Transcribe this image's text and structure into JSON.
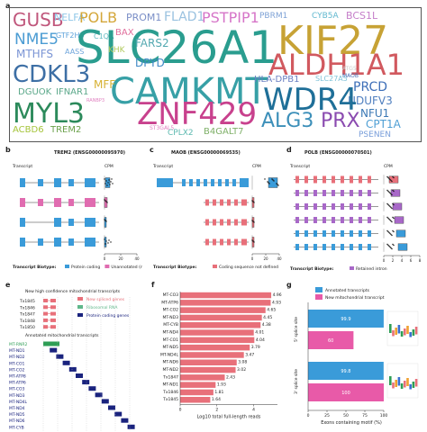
{
  "panel_letters": {
    "a": "a",
    "b": "b",
    "c": "c",
    "d": "d",
    "e": "e",
    "f": "f",
    "g": "g"
  },
  "wordcloud": {
    "words": [
      {
        "text": "GUSB",
        "color": "#c0577c"
      },
      {
        "text": "NELFA",
        "color": "#8fc7e8"
      },
      {
        "text": "POLB",
        "color": "#d4a73a"
      },
      {
        "text": "PROM1",
        "color": "#7b8fc7"
      },
      {
        "text": "FLAD1",
        "color": "#9ac2e0"
      },
      {
        "text": "PSTPIP1",
        "color": "#d675c8"
      },
      {
        "text": "PBRM1",
        "color": "#7ea2d6"
      },
      {
        "text": "CYB5A",
        "color": "#60b8cf"
      },
      {
        "text": "BCS1L",
        "color": "#c57ec9"
      },
      {
        "text": "NME5",
        "color": "#4b9cd3"
      },
      {
        "text": "GTF2H5",
        "color": "#5aa0d9"
      },
      {
        "text": "C1QA",
        "color": "#5fb8c0"
      },
      {
        "text": "BAX",
        "color": "#e06d9b"
      },
      {
        "text": "SLC26A1",
        "color": "#2a9d8f"
      },
      {
        "text": "KIF27",
        "color": "#c7a235"
      },
      {
        "text": "MTHFS",
        "color": "#7b95d5"
      },
      {
        "text": "AASS",
        "color": "#70a6dc"
      },
      {
        "text": "KHK",
        "color": "#b0c95a"
      },
      {
        "text": "FARS2",
        "color": "#52a8b0"
      },
      {
        "text": "ALDH1A1",
        "color": "#d1595f"
      },
      {
        "text": "CDKL3",
        "color": "#3d6fa5"
      },
      {
        "text": "DPYD",
        "color": "#3f89c5"
      },
      {
        "text": "CAMKMT",
        "color": "#37a0a6"
      },
      {
        "text": "ATG5",
        "color": "#c8c8c8"
      },
      {
        "text": "DGUOK",
        "color": "#5ba88a"
      },
      {
        "text": "IFNAR1",
        "color": "#5ba88a"
      },
      {
        "text": "MFF",
        "color": "#d7b233"
      },
      {
        "text": "HLA-DPB1",
        "color": "#6a7fc2"
      },
      {
        "text": "SLC27A5",
        "color": "#7fc2d8"
      },
      {
        "text": "PRCD",
        "color": "#3e6fb8"
      },
      {
        "text": "NDUFV3",
        "color": "#4f7fbf"
      },
      {
        "text": "MAOB",
        "color": "#4a6fb4"
      },
      {
        "text": "MYL3",
        "color": "#2c8a5b"
      },
      {
        "text": "ZNF429",
        "color": "#c8418d"
      },
      {
        "text": "WDR4",
        "color": "#1f6f98"
      },
      {
        "text": "NFU1",
        "color": "#3c79b5"
      },
      {
        "text": "RANBP3",
        "color": "#e080c0"
      },
      {
        "text": "ST3GAL5",
        "color": "#e080c0"
      },
      {
        "text": "ALG3",
        "color": "#3c8fb9"
      },
      {
        "text": "PRX",
        "color": "#8b4bb0"
      },
      {
        "text": "CPT1A",
        "color": "#4f9fd4"
      },
      {
        "text": "ACBD6",
        "color": "#a5c43a"
      },
      {
        "text": "TREM2",
        "color": "#6aa04a"
      },
      {
        "text": "CPLX2",
        "color": "#5db9b0"
      },
      {
        "text": "B4GALT7",
        "color": "#7fb068"
      },
      {
        "text": "PSENEN",
        "color": "#7a9fda"
      }
    ]
  },
  "panel_b": {
    "title": "TREM2 (ENSG00000095970)",
    "transcript": "Transcript",
    "cpm": "CPM",
    "axis_ticks": [
      "0",
      "20",
      "40"
    ],
    "legend_title": "Transcript Biotype:",
    "legend": [
      {
        "label": "Protein coding",
        "color": "#3a9bd9"
      },
      {
        "label": "Unannotated (new)",
        "color": "#e06cb0"
      }
    ]
  },
  "panel_c": {
    "title": "MAOB (ENSG00000069535)",
    "transcript": "Transcript",
    "cpm": "CPM",
    "axis_ticks": [
      "0",
      "20",
      "40"
    ],
    "legend_title": "Transcript Biotype:",
    "legend": [
      {
        "label": "Coding sequence not defined",
        "color": "#e8707a"
      }
    ]
  },
  "panel_d": {
    "title": "POLB (ENSG00000070501)",
    "transcript": "Transcript",
    "cpm": "CPM",
    "axis_ticks": [
      "0",
      "2",
      "4",
      "6",
      "8"
    ],
    "legend_title": "Transcript Biotype:",
    "legend": [
      {
        "label": "Retained intron",
        "color": "#a868c8"
      }
    ]
  },
  "panel_e": {
    "subtitle_new": "New high confidence mitochondrial transcripts",
    "subtitle_annot": "Annotated mitochondrial transcripts",
    "legend": [
      {
        "label": "New spliced genes",
        "color": "#e8707a"
      },
      {
        "label": "Ribosomal RNA",
        "color": "#5fb88a"
      },
      {
        "label": "Protein coding genes",
        "color": "#1a237e"
      }
    ],
    "new_rows": [
      "Tx1845",
      "Tx1846",
      "Tx1847",
      "Tx1848",
      "Tx1850"
    ],
    "annot_rows": [
      {
        "label": "MT-RNR2",
        "color": "#2e9e55"
      },
      {
        "label": "MT-ND1",
        "color": "#1a237e"
      },
      {
        "label": "MT-ND2",
        "color": "#1a237e"
      },
      {
        "label": "MT-CO1",
        "color": "#1a237e"
      },
      {
        "label": "MT-CO2",
        "color": "#1a237e"
      },
      {
        "label": "MT-ATP8",
        "color": "#1a237e"
      },
      {
        "label": "MT-ATP6",
        "color": "#1a237e"
      },
      {
        "label": "MT-CO3",
        "color": "#1a237e"
      },
      {
        "label": "MT-ND3",
        "color": "#1a237e"
      },
      {
        "label": "MT-ND4L",
        "color": "#1a237e"
      },
      {
        "label": "MT-ND4",
        "color": "#1a237e"
      },
      {
        "label": "MT-ND5",
        "color": "#1a237e"
      },
      {
        "label": "MT-ND6",
        "color": "#1a237e"
      },
      {
        "label": "MT-CYB",
        "color": "#1a237e"
      }
    ]
  },
  "chart_data": [
    {
      "type": "bar",
      "orientation": "horizontal",
      "categories": [
        "MT-CO3",
        "MT-ATP6",
        "MT-CO2",
        "MT-ND3",
        "MT-CYB",
        "MT-ND4",
        "MT-CO1",
        "MT-ND5",
        "MT-ND4L",
        "MT-ND6",
        "MT-ND2",
        "Tx1847",
        "MT-ND1",
        "Tx1846",
        "Tx1845"
      ],
      "values": [
        4.96,
        4.93,
        4.65,
        4.45,
        4.38,
        4.01,
        4.04,
        3.79,
        3.47,
        3.08,
        3.02,
        2.43,
        1.93,
        1.81,
        1.64
      ],
      "value_labels": [
        "4.96",
        "4.93",
        "4.65",
        "4.45",
        "4.38",
        "4.01",
        "4.04",
        "3.79",
        "3.47",
        "3.08",
        "3.02",
        "2.43",
        "1.93",
        "1.81",
        "1.64"
      ],
      "xlabel": "Log10 total full-length reads",
      "xticks": [
        "0",
        "2",
        "4"
      ],
      "xlim": [
        0,
        5.3
      ],
      "color": "#e8707a"
    },
    {
      "type": "bar",
      "orientation": "horizontal",
      "groups": [
        "5' splice site",
        "3' splice site"
      ],
      "series": [
        {
          "name": "Annotated transcripts",
          "values": [
            99.9,
            99.8
          ],
          "color": "#3a9bd9"
        },
        {
          "name": "New mitochondrial transcript",
          "values": [
            60,
            100
          ],
          "color": "#e85aa8"
        }
      ],
      "value_labels": [
        [
          "99.9",
          "60"
        ],
        [
          "99.8",
          "100"
        ]
      ],
      "xlabel": "Exons containing motif (%)",
      "xticks": [
        "0",
        "25",
        "50",
        "75",
        "100"
      ],
      "xlim": [
        0,
        100
      ]
    }
  ]
}
